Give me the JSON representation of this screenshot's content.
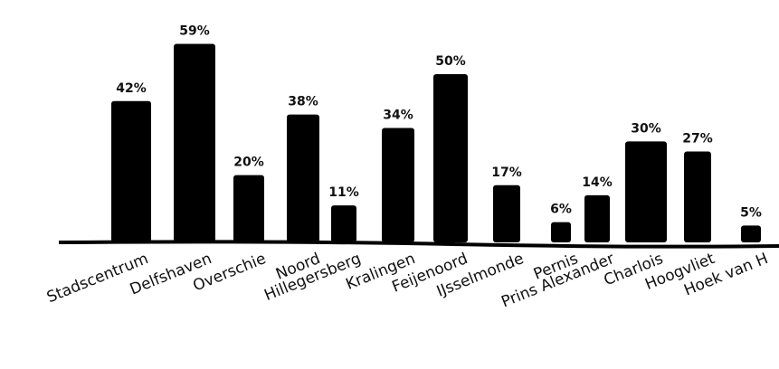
{
  "chart_data": {
    "type": "bar",
    "categories": [
      "Stadscentrum",
      "Delfshaven",
      "Overschie",
      "Noord",
      "Hillegersberg",
      "Kralingen",
      "Feijenoord",
      "IJsselmonde",
      "Pernis",
      "Prins Alexander",
      "Charlois",
      "Hoogvliet",
      "Hoek van H"
    ],
    "values": [
      42,
      59,
      20,
      38,
      11,
      34,
      50,
      17,
      6,
      14,
      30,
      27,
      5
    ],
    "value_labels": [
      "42%",
      "59%",
      "20%",
      "38%",
      "11%",
      "34%",
      "50%",
      "17%",
      "6%",
      "14%",
      "30%",
      "27%",
      "5%"
    ],
    "color": "#000000"
  }
}
